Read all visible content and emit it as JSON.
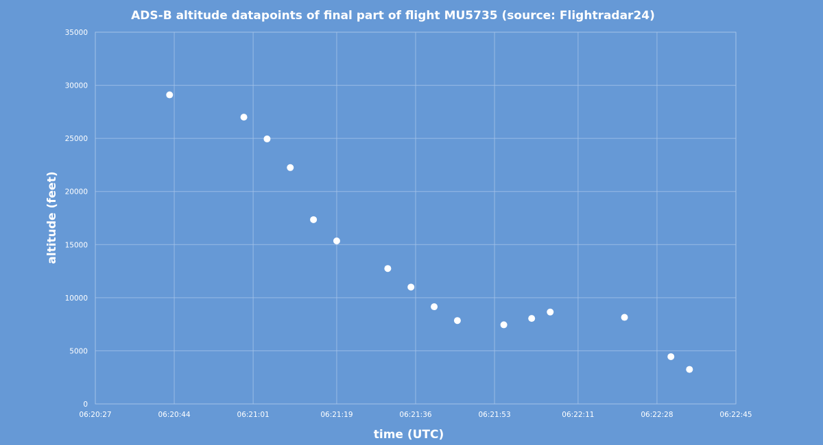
{
  "chart_data": {
    "type": "scatter",
    "title": "ADS-B altitude datapoints of final part of flight MU5735 (source: Flightradar24)",
    "xlabel": "time (UTC)",
    "ylabel": "altitude (feet)",
    "xlim": [
      "06:20:27",
      "06:22:45"
    ],
    "ylim": [
      0,
      35000
    ],
    "x_ticks": [
      "06:20:27",
      "06:20:44",
      "06:21:01",
      "06:21:19",
      "06:21:36",
      "06:21:53",
      "06:22:11",
      "06:22:28",
      "06:22:45"
    ],
    "y_ticks": [
      "0",
      "5000",
      "10000",
      "15000",
      "20000",
      "25000",
      "30000",
      "35000"
    ],
    "grid": true,
    "legend": false,
    "colors": {
      "background": "#6699d6",
      "points": "#ffffff",
      "text": "#ffffff",
      "grid": "#a9c5ea"
    },
    "points": [
      {
        "x": "06:20:43",
        "y": 29100
      },
      {
        "x": "06:20:59",
        "y": 27000
      },
      {
        "x": "06:21:04",
        "y": 24950
      },
      {
        "x": "06:21:09",
        "y": 22250
      },
      {
        "x": "06:21:14",
        "y": 17350
      },
      {
        "x": "06:21:19",
        "y": 15350
      },
      {
        "x": "06:21:30",
        "y": 12750
      },
      {
        "x": "06:21:35",
        "y": 11000
      },
      {
        "x": "06:21:40",
        "y": 9150
      },
      {
        "x": "06:21:45",
        "y": 7850
      },
      {
        "x": "06:21:55",
        "y": 7450
      },
      {
        "x": "06:22:01",
        "y": 8050
      },
      {
        "x": "06:22:05",
        "y": 8650
      },
      {
        "x": "06:22:21",
        "y": 8150
      },
      {
        "x": "06:22:31",
        "y": 4450
      },
      {
        "x": "06:22:35",
        "y": 3250
      }
    ]
  }
}
